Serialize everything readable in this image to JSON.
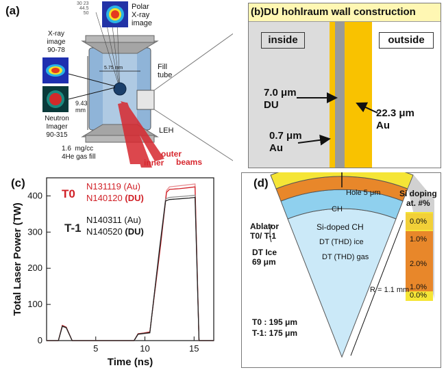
{
  "panel_a": {
    "label": "(a)",
    "scale_numbers": "30 23\n44.5\n50",
    "polar_image_label": "Polar\nX-ray\nimage",
    "xray_label": "X-ray\nimage\n90-78",
    "dim_horizontal": "5.75 mm",
    "dim_vertical": "9.43\nmm",
    "fill_tube_label": "Fill\ntube",
    "neutron_label": "Neutron\nImager\n90-315",
    "leh_label": "LEH",
    "gas_fill_label": "1.6  mg/cc\n4He gas fill",
    "outer_label": "outer",
    "inner_label": "inner",
    "beams_label": "beams",
    "colors": {
      "beams": "#d7282f"
    }
  },
  "panel_b": {
    "label": "(b)",
    "title": "DU hohlraum wall construction",
    "inside_label": "inside",
    "outside_label": "outside",
    "du_label": "7.0 μm\nDU",
    "au_inner_label": "0.7 μm\nAu",
    "au_outer_label": "22.3 μm\nAu",
    "colors": {
      "title_bg": "#fff7b3",
      "du": "#9a9a9a",
      "au": "#f9c200",
      "inside_bg": "#dcdcdc"
    }
  },
  "panel_c": {
    "label": "(c)",
    "t0_label": "T0",
    "t1_label": "T-1",
    "legend": {
      "n131119": "N131119 (Au)",
      "n140120_shot": "N140120 ",
      "n140120_mat": "(DU)",
      "n140311": "N140311 (Au)",
      "n140520_shot": "N140520 ",
      "n140520_mat": "(DU)"
    }
  },
  "chart_data": {
    "type": "line",
    "title": "",
    "xlabel": "Time (ns)",
    "ylabel": "Total Laser Power (TW)",
    "xlim": [
      0,
      17
    ],
    "ylim": [
      0,
      450
    ],
    "xticks": [
      5,
      10,
      15
    ],
    "yticks": [
      0,
      100,
      200,
      300,
      400
    ],
    "grid": false,
    "series": [
      {
        "name": "N131119 (Au)",
        "color": "#e8878b",
        "x": [
          0,
          1.2,
          1.6,
          2.0,
          2.6,
          8.9,
          9.3,
          9.9,
          10.5,
          11.6,
          12.2,
          12.5,
          13.5,
          14.5,
          15.1,
          15.5,
          17
        ],
        "y": [
          0,
          0,
          40,
          36,
          0,
          0,
          18,
          20,
          22,
          275,
          415,
          425,
          428,
          431,
          433,
          0,
          0
        ]
      },
      {
        "name": "N140120 (DU)",
        "color": "#d01f26",
        "x": [
          0,
          1.2,
          1.6,
          2.0,
          2.6,
          8.9,
          9.3,
          9.9,
          10.5,
          11.6,
          12.2,
          12.5,
          13.5,
          14.5,
          15.1,
          15.5,
          17
        ],
        "y": [
          0,
          0,
          42,
          37,
          0,
          0,
          19,
          21,
          24,
          265,
          410,
          418,
          420,
          423,
          425,
          0,
          0
        ]
      },
      {
        "name": "N140311 (Au)",
        "color": "#8c8c8c",
        "x": [
          0,
          1.2,
          1.6,
          2.0,
          2.6,
          8.9,
          9.3,
          9.9,
          10.5,
          11.5,
          12.1,
          12.5,
          13.5,
          14.5,
          15.1,
          15.5,
          17
        ],
        "y": [
          0,
          0,
          39,
          35,
          0,
          0,
          17,
          19,
          21,
          260,
          392,
          396,
          398,
          400,
          402,
          0,
          0
        ]
      },
      {
        "name": "N140520 (DU)",
        "color": "#222222",
        "x": [
          0,
          1.2,
          1.6,
          2.0,
          2.6,
          8.9,
          9.3,
          9.9,
          10.5,
          11.5,
          12.1,
          12.5,
          13.5,
          14.5,
          15.1,
          15.5,
          17
        ],
        "y": [
          0,
          0,
          40,
          36,
          0,
          0,
          18,
          20,
          22,
          255,
          386,
          390,
          392,
          394,
          396,
          0,
          0
        ]
      }
    ]
  },
  "panel_d": {
    "label": "(d)",
    "hole_label": "Hole 5 μm",
    "si_doping_title": "Si doping\nat. #%",
    "ch_label": "CH",
    "sidoped_label": "Si-doped  CH",
    "dt_ice_inner": "DT (THD) ice",
    "dt_gas_label": "DT (THD) gas",
    "ablator_label": "Ablator\nT0/ T-1",
    "dt_ice_label": "DT Ice\n69 μm",
    "radius_label": "R = 1.1 mm",
    "t0_thick": "T0   : 195 μm",
    "t1_thick": "T-1: 175 μm",
    "doping_values": [
      "0.0%",
      "1.0%",
      "2.0%",
      "1.0%",
      "0.0%"
    ],
    "colors": {
      "ch": "#f5e536",
      "sidoped": "#e8872a",
      "ice": "#8fd0ee",
      "gas": "#cbe9f8"
    }
  }
}
